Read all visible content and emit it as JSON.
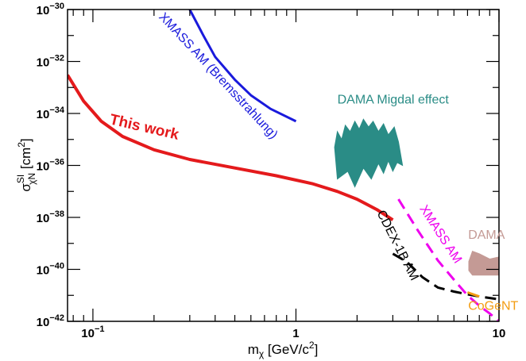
{
  "chart_data": {
    "type": "line",
    "xlabel": "m_χ [GeV/c²]",
    "ylabel": "σ^SI_χN [cm²]",
    "x_scale": "log",
    "y_scale": "log",
    "xlim": [
      0.075,
      10
    ],
    "ylim": [
      1e-42,
      1e-30
    ],
    "x_tick_labels": [
      {
        "value": 0.1,
        "base": "10",
        "exp": "−1"
      },
      {
        "value": 1,
        "base": "1",
        "exp": ""
      },
      {
        "value": 10,
        "base": "10",
        "exp": ""
      }
    ],
    "y_tick_labels": [
      {
        "value": 1e-30,
        "base": "10",
        "exp": "−30"
      },
      {
        "value": 1e-32,
        "base": "10",
        "exp": "−32"
      },
      {
        "value": 1e-34,
        "base": "10",
        "exp": "−34"
      },
      {
        "value": 1e-36,
        "base": "10",
        "exp": "−36"
      },
      {
        "value": 1e-38,
        "base": "10",
        "exp": "−38"
      },
      {
        "value": 1e-40,
        "base": "10",
        "exp": "−40"
      },
      {
        "value": 1e-42,
        "base": "10",
        "exp": "−42"
      }
    ],
    "grid": false,
    "series": [
      {
        "name": "This work",
        "key": "this-work",
        "color": "#e41a1c",
        "style": "solid",
        "label_angle": 13,
        "label_at": [
          0.12,
          4e-35
        ],
        "x": [
          0.075,
          0.09,
          0.11,
          0.14,
          0.2,
          0.3,
          0.5,
          0.8,
          1.2,
          1.6,
          2.0,
          2.5,
          3.0
        ],
        "y": [
          3e-33,
          3e-34,
          5e-35,
          1.3e-35,
          4e-36,
          1.7e-36,
          8e-37,
          4e-37,
          2e-37,
          1e-37,
          5e-38,
          2e-38,
          8e-39
        ]
      },
      {
        "name": "XMASS AM (Bremsstrahlung)",
        "key": "xmass-brems",
        "color": "#1a1adc",
        "style": "solid",
        "label_angle": 47,
        "label_at": [
          0.21,
          5e-31
        ],
        "x": [
          0.3,
          0.35,
          0.4,
          0.5,
          0.6,
          0.75,
          1.0
        ],
        "y": [
          1e-30,
          1e-31,
          1.5e-32,
          2e-33,
          5e-34,
          1.5e-34,
          5e-35
        ]
      },
      {
        "name": "XMASS AM",
        "key": "xmass-am",
        "color": "#ee00ee",
        "style": "dashed",
        "label_angle": 57,
        "label_at": [
          4.05,
          2.2e-38
        ],
        "x": [
          3.2,
          4,
          5,
          6,
          7,
          8,
          9,
          10
        ],
        "y": [
          5e-38,
          3e-39,
          2.2e-40,
          4e-41,
          1e-41,
          4e-42,
          2e-42,
          1e-42
        ]
      },
      {
        "name": "CDEX-1B AM",
        "key": "cdex",
        "color": "#000000",
        "style": "dashed",
        "label_angle": 63,
        "label_at": [
          2.5,
          1.5e-38
        ],
        "x": [
          3.0,
          3.5,
          4.2,
          5,
          6,
          7,
          8,
          10
        ],
        "y": [
          4e-40,
          2e-40,
          5e-41,
          2e-41,
          1.4e-41,
          1.1e-41,
          9e-42,
          7e-42
        ]
      },
      {
        "name": "CoGeNT",
        "key": "cogent",
        "color": "#f39c12",
        "style": "solid",
        "label_angle": 0,
        "label_at": [
          7.05,
          2.8e-42
        ],
        "x": [
          7.0,
          8.0
        ],
        "y": [
          1.3e-41,
          9e-42
        ]
      }
    ],
    "regions": [
      {
        "name": "DAMA Migdal effect",
        "key": "dama-migdal",
        "color": "#2a8c86",
        "label_at": [
          1.6,
          2.4e-34
        ],
        "polygon": [
          [
            1.55,
            5e-36
          ],
          [
            1.6,
            2e-35
          ],
          [
            1.68,
            1e-35
          ],
          [
            1.75,
            3.5e-35
          ],
          [
            1.85,
            2e-35
          ],
          [
            1.95,
            5e-35
          ],
          [
            2.05,
            2.5e-35
          ],
          [
            2.15,
            6e-35
          ],
          [
            2.28,
            3e-35
          ],
          [
            2.4,
            5e-35
          ],
          [
            2.55,
            2e-35
          ],
          [
            2.7,
            4e-35
          ],
          [
            2.85,
            1.5e-35
          ],
          [
            3.05,
            3e-35
          ],
          [
            3.2,
            8e-36
          ],
          [
            3.35,
            1e-36
          ],
          [
            3.15,
            1.3e-36
          ],
          [
            3.0,
            6e-37
          ],
          [
            2.85,
            1.5e-36
          ],
          [
            2.7,
            5e-37
          ],
          [
            2.55,
            1.2e-36
          ],
          [
            2.35,
            3e-37
          ],
          [
            2.15,
            8e-37
          ],
          [
            1.95,
            1.5e-37
          ],
          [
            1.8,
            6e-37
          ],
          [
            1.6,
            3e-37
          ]
        ]
      },
      {
        "name": "DAMA",
        "key": "dama",
        "color": "#c49a95",
        "label_at": [
          7.05,
          1.5e-39
        ],
        "polygon": [
          [
            7.1,
            2e-40
          ],
          [
            7.4,
            5e-40
          ],
          [
            8.0,
            4e-40
          ],
          [
            9.0,
            2.5e-40
          ],
          [
            10.0,
            3e-40
          ],
          [
            10.0,
            6e-41
          ],
          [
            9.0,
            6e-41
          ],
          [
            8.0,
            6e-41
          ],
          [
            7.4,
            6e-41
          ],
          [
            7.1,
            9e-41
          ]
        ]
      }
    ]
  }
}
